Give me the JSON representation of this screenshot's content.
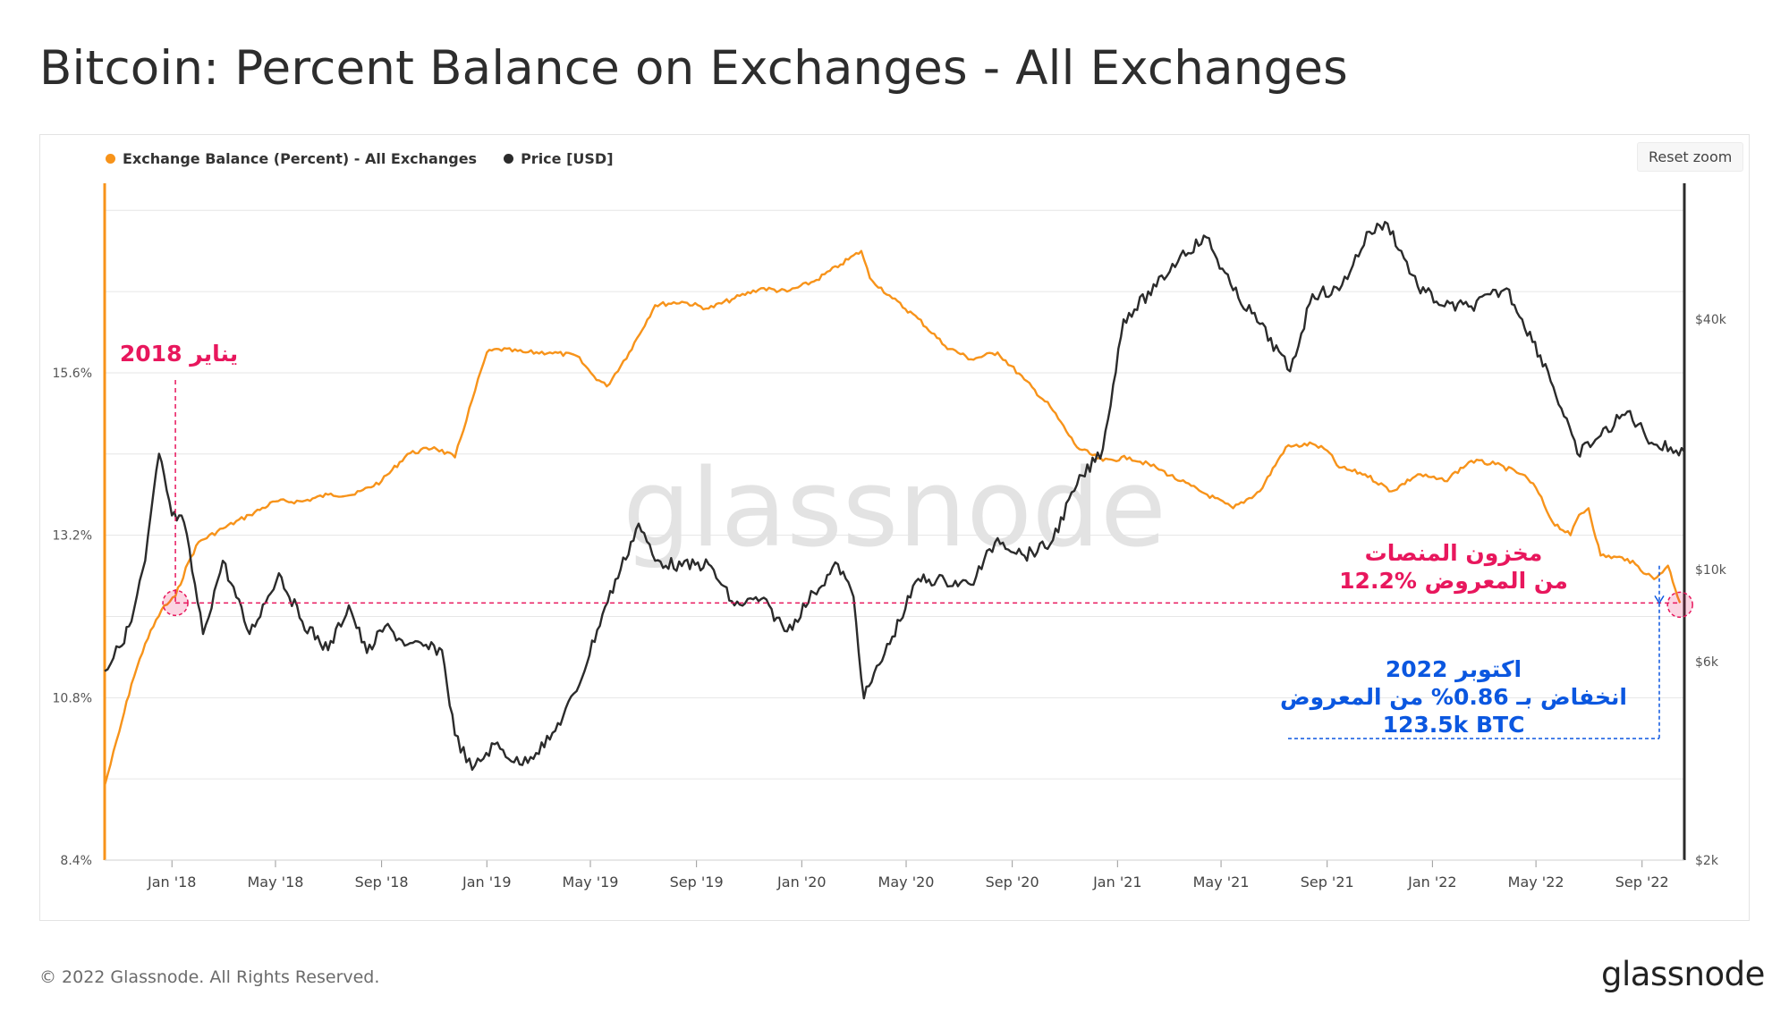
{
  "page": {
    "title": "Bitcoin: Percent Balance on Exchanges - All Exchanges",
    "footer": "© 2022 Glassnode. All Rights Reserved.",
    "logo": "glassnode",
    "watermark": "glassnode",
    "reset_zoom_label": "Reset zoom"
  },
  "colors": {
    "balance": "#f7931a",
    "price": "#2b2b2b",
    "annotation_pink": "#e8175d",
    "annotation_blue": "#0b57e0",
    "grid": "#e6e6e6"
  },
  "annotations": {
    "jan2018": "يناير 2018",
    "reserve_line1": "مخزون المنصات",
    "reserve_line2": "12.2% من المعروض",
    "oct_line1": "اكتوبر 2022",
    "oct_line2": "انخفاض بـ 0.86% من المعروض",
    "oct_line3": "123.5k BTC"
  },
  "chart_data": {
    "type": "line",
    "x_ticks": [
      "Jan '18",
      "May '18",
      "Sep '18",
      "Jan '19",
      "May '19",
      "Sep '19",
      "Jan '20",
      "May '20",
      "Sep '20",
      "Jan '21",
      "May '21",
      "Sep '21",
      "Jan '22",
      "May '22",
      "Sep '22"
    ],
    "x_range": [
      "2017-10-15",
      "2022-10-20"
    ],
    "y_left": {
      "ticks": [
        "8.4%",
        "10.8%",
        "13.2%",
        "15.6%"
      ],
      "range": [
        8.4,
        18.4
      ]
    },
    "y_right": {
      "ticks": [
        "$2k",
        "$6k",
        "$10k",
        "$40k"
      ],
      "scale": "log",
      "range": [
        2000,
        85000
      ]
    },
    "legend_position": "top-left",
    "grid": true,
    "series": [
      {
        "name": "Exchange Balance (Percent) - All Exchanges",
        "axis": "left",
        "points": [
          [
            "2017-10-15",
            9.5
          ],
          [
            "2017-11-01",
            10.3
          ],
          [
            "2017-11-15",
            11.0
          ],
          [
            "2017-12-01",
            11.6
          ],
          [
            "2017-12-20",
            12.1
          ],
          [
            "2018-01-05",
            12.3
          ],
          [
            "2018-01-20",
            12.8
          ],
          [
            "2018-02-01",
            13.1
          ],
          [
            "2018-03-01",
            13.3
          ],
          [
            "2018-04-01",
            13.5
          ],
          [
            "2018-05-01",
            13.7
          ],
          [
            "2018-06-01",
            13.7
          ],
          [
            "2018-07-01",
            13.8
          ],
          [
            "2018-08-01",
            13.8
          ],
          [
            "2018-09-01",
            14.0
          ],
          [
            "2018-10-01",
            14.4
          ],
          [
            "2018-11-01",
            14.5
          ],
          [
            "2018-11-25",
            14.35
          ],
          [
            "2018-12-15",
            15.2
          ],
          [
            "2019-01-01",
            15.9
          ],
          [
            "2019-01-15",
            15.95
          ],
          [
            "2019-02-15",
            15.9
          ],
          [
            "2019-03-15",
            15.9
          ],
          [
            "2019-04-15",
            15.85
          ],
          [
            "2019-05-05",
            15.55
          ],
          [
            "2019-05-20",
            15.4
          ],
          [
            "2019-06-15",
            15.9
          ],
          [
            "2019-07-15",
            16.6
          ],
          [
            "2019-08-15",
            16.65
          ],
          [
            "2019-09-15",
            16.55
          ],
          [
            "2019-10-15",
            16.7
          ],
          [
            "2019-11-15",
            16.85
          ],
          [
            "2019-12-15",
            16.8
          ],
          [
            "2020-01-15",
            16.95
          ],
          [
            "2020-02-15",
            17.2
          ],
          [
            "2020-03-10",
            17.4
          ],
          [
            "2020-03-20",
            17.0
          ],
          [
            "2020-04-15",
            16.7
          ],
          [
            "2020-05-15",
            16.4
          ],
          [
            "2020-06-15",
            16.0
          ],
          [
            "2020-07-15",
            15.8
          ],
          [
            "2020-08-15",
            15.9
          ],
          [
            "2020-09-15",
            15.5
          ],
          [
            "2020-10-15",
            15.1
          ],
          [
            "2020-11-15",
            14.5
          ],
          [
            "2020-12-15",
            14.3
          ],
          [
            "2021-01-15",
            14.35
          ],
          [
            "2021-02-15",
            14.2
          ],
          [
            "2021-03-15",
            14.0
          ],
          [
            "2021-04-15",
            13.8
          ],
          [
            "2021-05-15",
            13.6
          ],
          [
            "2021-06-15",
            13.85
          ],
          [
            "2021-07-15",
            14.5
          ],
          [
            "2021-08-15",
            14.55
          ],
          [
            "2021-09-01",
            14.45
          ],
          [
            "2021-09-15",
            14.2
          ],
          [
            "2021-10-15",
            14.1
          ],
          [
            "2021-11-15",
            13.85
          ],
          [
            "2021-12-15",
            14.1
          ],
          [
            "2022-01-15",
            14.0
          ],
          [
            "2022-02-15",
            14.3
          ],
          [
            "2022-03-15",
            14.25
          ],
          [
            "2022-04-15",
            14.1
          ],
          [
            "2022-05-01",
            13.9
          ],
          [
            "2022-05-20",
            13.4
          ],
          [
            "2022-06-10",
            13.2
          ],
          [
            "2022-06-20",
            13.5
          ],
          [
            "2022-07-01",
            13.6
          ],
          [
            "2022-07-15",
            12.9
          ],
          [
            "2022-08-15",
            12.85
          ],
          [
            "2022-09-15",
            12.55
          ],
          [
            "2022-10-01",
            12.75
          ],
          [
            "2022-10-15",
            12.2
          ]
        ]
      },
      {
        "name": "Price [USD]",
        "axis": "right",
        "points": [
          [
            "2017-10-15",
            5700
          ],
          [
            "2017-11-01",
            6500
          ],
          [
            "2017-11-15",
            7500
          ],
          [
            "2017-12-01",
            10500
          ],
          [
            "2017-12-17",
            19000
          ],
          [
            "2018-01-01",
            13500
          ],
          [
            "2018-01-15",
            13000
          ],
          [
            "2018-02-06",
            7000
          ],
          [
            "2018-03-01",
            10500
          ],
          [
            "2018-04-01",
            7000
          ],
          [
            "2018-05-05",
            9800
          ],
          [
            "2018-06-01",
            7500
          ],
          [
            "2018-07-01",
            6400
          ],
          [
            "2018-07-25",
            8200
          ],
          [
            "2018-08-15",
            6300
          ],
          [
            "2018-09-05",
            7300
          ],
          [
            "2018-10-01",
            6600
          ],
          [
            "2018-11-10",
            6400
          ],
          [
            "2018-11-25",
            4000
          ],
          [
            "2018-12-15",
            3300
          ],
          [
            "2019-01-10",
            3800
          ],
          [
            "2019-02-08",
            3400
          ],
          [
            "2019-03-15",
            3900
          ],
          [
            "2019-04-15",
            5100
          ],
          [
            "2019-05-15",
            7800
          ],
          [
            "2019-06-26",
            12900
          ],
          [
            "2019-07-15",
            10500
          ],
          [
            "2019-08-15",
            10200
          ],
          [
            "2019-09-15",
            10300
          ],
          [
            "2019-10-15",
            8200
          ],
          [
            "2019-11-15",
            8500
          ],
          [
            "2019-12-15",
            7100
          ],
          [
            "2020-01-15",
            8800
          ],
          [
            "2020-02-12",
            10300
          ],
          [
            "2020-03-01",
            8600
          ],
          [
            "2020-03-13",
            4900
          ],
          [
            "2020-04-15",
            6900
          ],
          [
            "2020-05-15",
            9500
          ],
          [
            "2020-06-15",
            9400
          ],
          [
            "2020-07-15",
            9200
          ],
          [
            "2020-08-15",
            11900
          ],
          [
            "2020-09-15",
            10800
          ],
          [
            "2020-10-15",
            11500
          ],
          [
            "2020-11-15",
            16000
          ],
          [
            "2020-12-15",
            19500
          ],
          [
            "2021-01-08",
            40000
          ],
          [
            "2021-02-15",
            48000
          ],
          [
            "2021-03-15",
            57000
          ],
          [
            "2021-04-14",
            63000
          ],
          [
            "2021-05-15",
            47000
          ],
          [
            "2021-06-15",
            39000
          ],
          [
            "2021-07-20",
            30000
          ],
          [
            "2021-08-15",
            46000
          ],
          [
            "2021-09-15",
            47000
          ],
          [
            "2021-10-20",
            65000
          ],
          [
            "2021-11-10",
            68000
          ],
          [
            "2021-12-15",
            48000
          ],
          [
            "2022-01-15",
            43000
          ],
          [
            "2022-02-15",
            43000
          ],
          [
            "2022-03-28",
            47500
          ],
          [
            "2022-04-15",
            40000
          ],
          [
            "2022-05-15",
            30000
          ],
          [
            "2022-06-18",
            19000
          ],
          [
            "2022-07-15",
            21000
          ],
          [
            "2022-08-15",
            24000
          ],
          [
            "2022-09-15",
            20000
          ],
          [
            "2022-10-20",
            19200
          ]
        ]
      }
    ]
  }
}
